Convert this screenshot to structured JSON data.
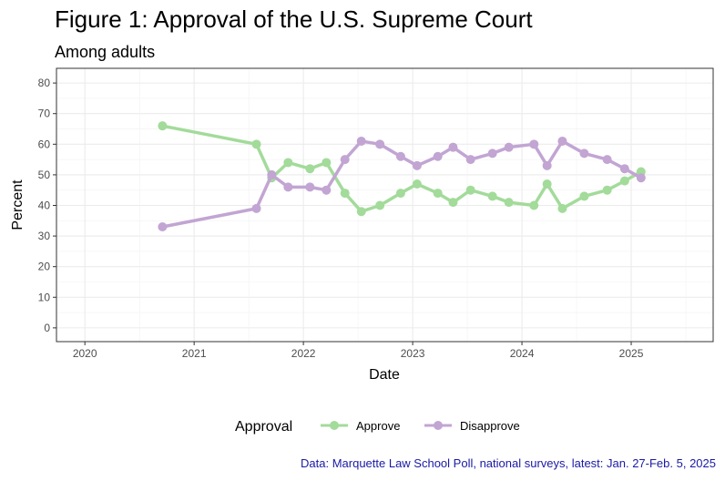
{
  "chart_data": {
    "type": "line",
    "title": "Figure 1: Approval of the U.S. Supreme Court",
    "subtitle": "Among adults",
    "xlabel": "Date",
    "ylabel": "Percent",
    "caption": "Data: Marquette Law School Poll, national surveys, latest: Jan. 27-Feb. 5, 2025",
    "xlim": [
      2019.74,
      2025.75
    ],
    "ylim": [
      -4.5,
      84.8
    ],
    "xticks": [
      2020,
      2021,
      2022,
      2023,
      2024,
      2025
    ],
    "yticks": [
      0,
      10,
      20,
      30,
      40,
      50,
      60,
      70,
      80
    ],
    "grid": true,
    "legend": {
      "title": "Approval",
      "position": "bottom"
    },
    "x": [
      2020.71,
      2021.57,
      2021.71,
      2021.86,
      2022.06,
      2022.21,
      2022.38,
      2022.53,
      2022.7,
      2022.89,
      2023.04,
      2023.23,
      2023.37,
      2023.53,
      2023.73,
      2023.88,
      2024.11,
      2024.23,
      2024.37,
      2024.57,
      2024.78,
      2024.94,
      2025.09
    ],
    "series": [
      {
        "name": "Approve",
        "color": "#a3db9a",
        "values": [
          66,
          60,
          49,
          54,
          52,
          54,
          44,
          38,
          40,
          44,
          47,
          44,
          41,
          45,
          43,
          41,
          40,
          47,
          39,
          43,
          45,
          48,
          51
        ]
      },
      {
        "name": "Disapprove",
        "color": "#c2a5d3",
        "values": [
          33,
          39,
          50,
          46,
          46,
          45,
          55,
          61,
          60,
          56,
          53,
          56,
          59,
          55,
          57,
          59,
          60,
          53,
          61,
          57,
          55,
          52,
          49
        ]
      }
    ]
  }
}
